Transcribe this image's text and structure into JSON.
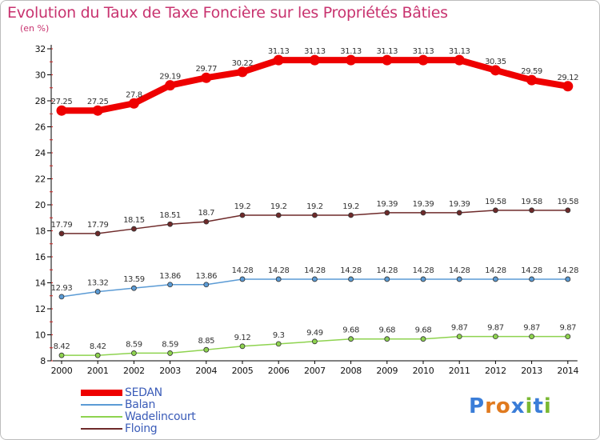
{
  "chart_data": {
    "type": "line",
    "title": "Evolution du Taux de Taxe Foncière sur les Propriétés Bâties",
    "subtitle": "(en %)",
    "xlabel": "",
    "ylabel": "(en %)",
    "ylim": [
      8,
      32
    ],
    "yticks": [
      8,
      10,
      12,
      14,
      16,
      18,
      20,
      22,
      24,
      26,
      28,
      30,
      32
    ],
    "grid": false,
    "legend_position": "bottom-left",
    "categories": [
      "2000",
      "2001",
      "2002",
      "2003",
      "2004",
      "2005",
      "2006",
      "2007",
      "2008",
      "2009",
      "2010",
      "2011",
      "2012",
      "2013",
      "2014"
    ],
    "series": [
      {
        "name": "SEDAN",
        "color": "#ee0000",
        "values": [
          27.25,
          27.25,
          27.8,
          29.19,
          29.77,
          30.22,
          31.13,
          31.13,
          31.13,
          31.13,
          31.13,
          31.13,
          30.35,
          29.59,
          29.12
        ]
      },
      {
        "name": "Balan",
        "color": "#5b9bd5",
        "values": [
          12.93,
          13.32,
          13.59,
          13.86,
          13.86,
          14.28,
          14.28,
          14.28,
          14.28,
          14.28,
          14.28,
          14.28,
          14.28,
          14.28,
          14.28
        ]
      },
      {
        "name": "Wadelincourt",
        "color": "#8ed34f",
        "values": [
          8.42,
          8.42,
          8.59,
          8.59,
          8.85,
          9.12,
          9.3,
          9.49,
          9.68,
          9.68,
          9.68,
          9.87,
          9.87,
          9.87,
          9.87
        ]
      },
      {
        "name": "Floing",
        "color": "#6e2a2a",
        "values": [
          17.79,
          17.79,
          18.15,
          18.51,
          18.7,
          19.2,
          19.2,
          19.2,
          19.2,
          19.39,
          19.39,
          19.39,
          19.58,
          19.58,
          19.58
        ]
      }
    ]
  },
  "brand": {
    "letters": [
      "P",
      "r",
      "o",
      "x",
      "i",
      "t",
      "i"
    ],
    "letter_colors": [
      "#3a7dd8",
      "#e07a1f",
      "#e07a1f",
      "#3a7dd8",
      "#7ab833",
      "#3a7dd8",
      "#7ab833"
    ]
  }
}
